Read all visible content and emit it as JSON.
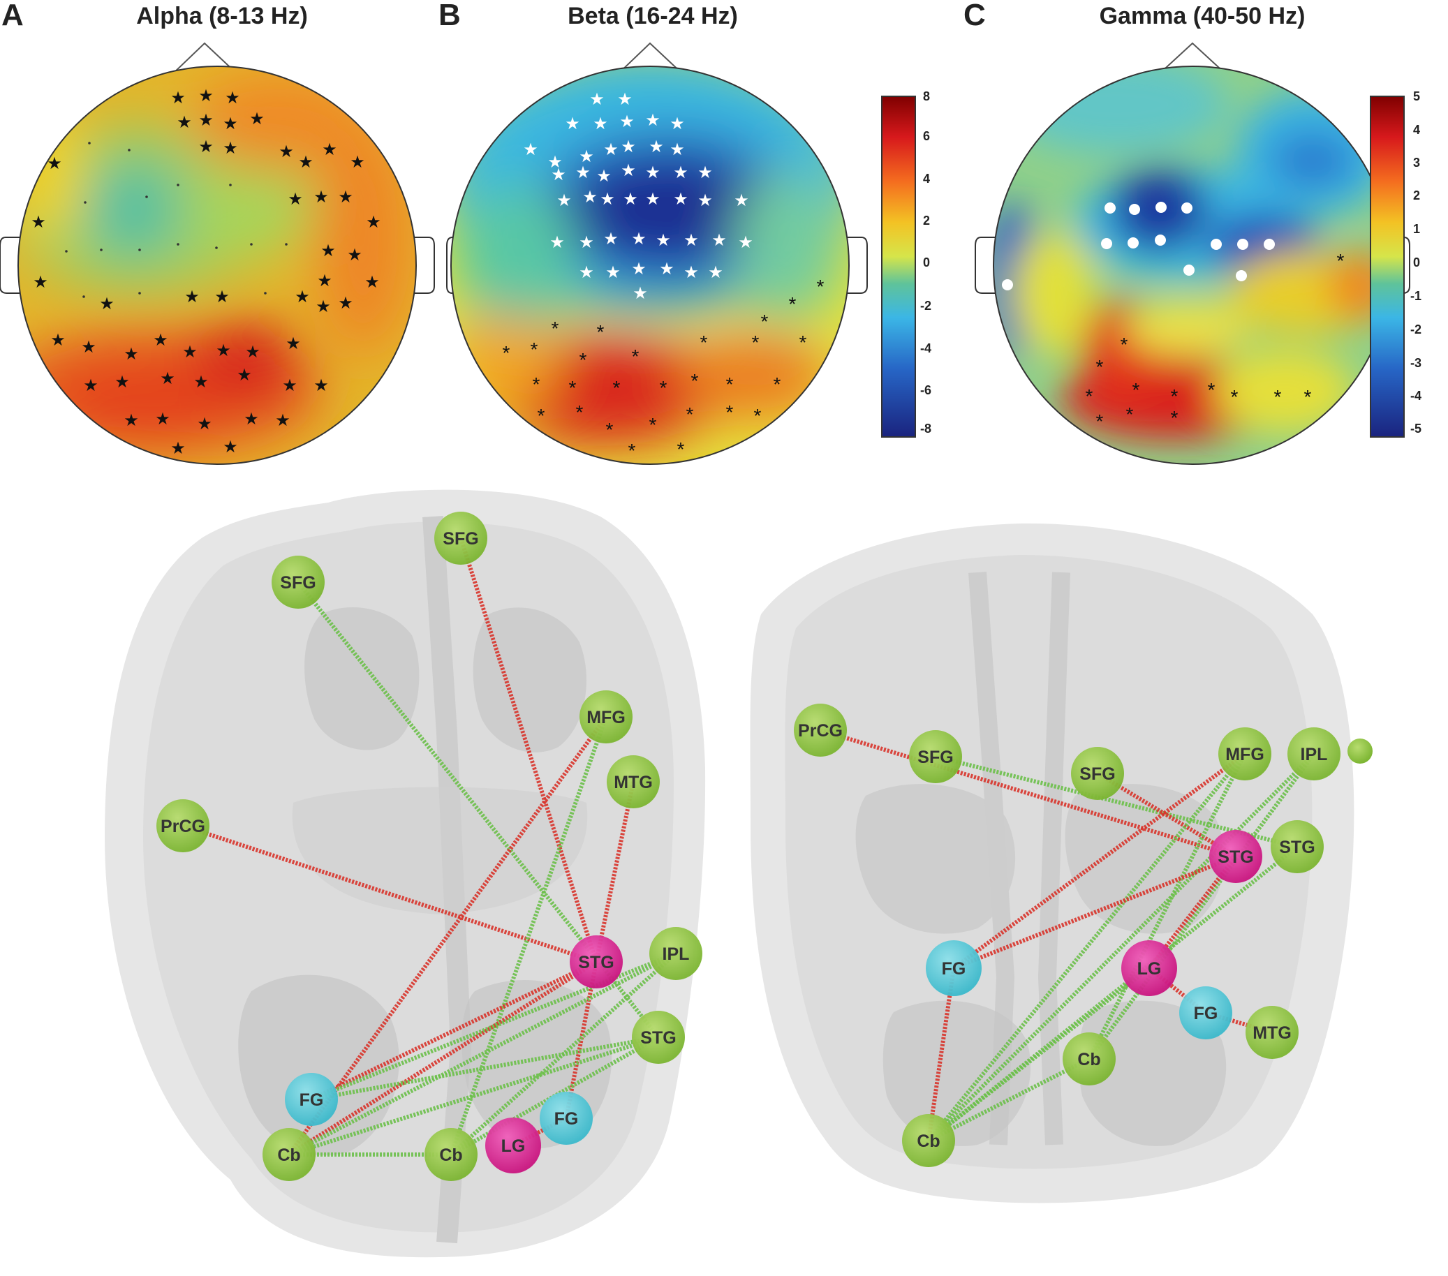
{
  "panels": [
    {
      "letter": "A",
      "title": "Alpha (8-13 Hz)"
    },
    {
      "letter": "B",
      "title": "Beta (16-24 Hz)"
    },
    {
      "letter": "C",
      "title": "Gamma (40-50 Hz)"
    }
  ],
  "colorbars": [
    {
      "ticks": [
        "8",
        "6",
        "4",
        "2",
        "0",
        "-2",
        "-4",
        "-6",
        "-8"
      ]
    },
    {
      "ticks": [
        "5",
        "4",
        "3",
        "2",
        "1",
        "0",
        "-1",
        "-2",
        "-3",
        "-4",
        "-5"
      ]
    }
  ],
  "colors": {
    "region_green": "#8dc63f",
    "region_magenta": "#e0219a",
    "region_cyan": "#4fc8d8",
    "edge_red": "#d9342b",
    "edge_green": "#6cc04a",
    "map_red": "#d7191c",
    "map_yellow": "#e6e81f",
    "map_blue": "#1f3fa8"
  },
  "networks": [
    {
      "view": "axial",
      "nodes": [
        {
          "id": "SFG_a",
          "label": "SFG",
          "type": "green"
        },
        {
          "id": "SFG_b",
          "label": "SFG",
          "type": "green"
        },
        {
          "id": "MFG",
          "label": "MFG",
          "type": "green"
        },
        {
          "id": "MTG",
          "label": "MTG",
          "type": "green"
        },
        {
          "id": "PrCG",
          "label": "PrCG",
          "type": "green"
        },
        {
          "id": "STG_m",
          "label": "STG",
          "type": "magenta"
        },
        {
          "id": "IPL",
          "label": "IPL",
          "type": "green"
        },
        {
          "id": "STG_g",
          "label": "STG",
          "type": "green"
        },
        {
          "id": "FG_l",
          "label": "FG",
          "type": "cyan"
        },
        {
          "id": "FG_r",
          "label": "FG",
          "type": "cyan"
        },
        {
          "id": "LG",
          "label": "LG",
          "type": "magenta"
        },
        {
          "id": "Cb_l",
          "label": "Cb",
          "type": "green"
        },
        {
          "id": "Cb_r",
          "label": "Cb",
          "type": "green"
        }
      ],
      "edges": [
        {
          "from": "SFG_a",
          "to": "STG_g",
          "color": "green"
        },
        {
          "from": "SFG_b",
          "to": "STG_m",
          "color": "red"
        },
        {
          "from": "PrCG",
          "to": "STG_m",
          "color": "red"
        },
        {
          "from": "MFG",
          "to": "Cb_l",
          "color": "red"
        },
        {
          "from": "MFG",
          "to": "Cb_r",
          "color": "green"
        },
        {
          "from": "MTG",
          "to": "STG_m",
          "color": "red"
        },
        {
          "from": "STG_m",
          "to": "FG_l",
          "color": "red"
        },
        {
          "from": "STG_m",
          "to": "Cb_l",
          "color": "red"
        },
        {
          "from": "STG_m",
          "to": "FG_r",
          "color": "red"
        },
        {
          "from": "IPL",
          "to": "FG_l",
          "color": "green"
        },
        {
          "from": "IPL",
          "to": "Cb_l",
          "color": "green"
        },
        {
          "from": "IPL",
          "to": "Cb_r",
          "color": "green"
        },
        {
          "from": "STG_g",
          "to": "Cb_l",
          "color": "green"
        },
        {
          "from": "STG_g",
          "to": "Cb_r",
          "color": "green"
        },
        {
          "from": "Cb_l",
          "to": "Cb_r",
          "color": "green"
        },
        {
          "from": "LG",
          "to": "FG_r",
          "color": "red"
        },
        {
          "from": "FG_l",
          "to": "STG_g",
          "color": "green"
        }
      ]
    },
    {
      "view": "coronal",
      "nodes": [
        {
          "id": "PrCG",
          "label": "PrCG",
          "type": "green"
        },
        {
          "id": "SFG_a",
          "label": "SFG",
          "type": "green"
        },
        {
          "id": "SFG_b",
          "label": "SFG",
          "type": "green"
        },
        {
          "id": "MFG",
          "label": "MFG",
          "type": "green"
        },
        {
          "id": "IPL",
          "label": "IPL",
          "type": "green"
        },
        {
          "id": "STG_m",
          "label": "STG",
          "type": "magenta"
        },
        {
          "id": "STG_g",
          "label": "STG",
          "type": "green"
        },
        {
          "id": "FG_l",
          "label": "FG",
          "type": "cyan"
        },
        {
          "id": "LG",
          "label": "LG",
          "type": "magenta"
        },
        {
          "id": "FG_r",
          "label": "FG",
          "type": "cyan"
        },
        {
          "id": "MTG",
          "label": "MTG",
          "type": "green"
        },
        {
          "id": "Cb_r",
          "label": "Cb",
          "type": "green"
        },
        {
          "id": "Cb_l",
          "label": "Cb",
          "type": "green"
        }
      ],
      "edges": [
        {
          "from": "PrCG",
          "to": "STG_m",
          "color": "red"
        },
        {
          "from": "SFG_a",
          "to": "STG_g",
          "color": "green"
        },
        {
          "from": "SFG_b",
          "to": "STG_m",
          "color": "red"
        },
        {
          "from": "MFG",
          "to": "FG_l",
          "color": "red"
        },
        {
          "from": "MFG",
          "to": "Cb_l",
          "color": "green"
        },
        {
          "from": "MFG",
          "to": "Cb_r",
          "color": "green"
        },
        {
          "from": "IPL",
          "to": "Cb_l",
          "color": "green"
        },
        {
          "from": "IPL",
          "to": "Cb_r",
          "color": "green"
        },
        {
          "from": "STG_m",
          "to": "FG_l",
          "color": "red"
        },
        {
          "from": "STG_m",
          "to": "LG",
          "color": "red"
        },
        {
          "from": "STG_g",
          "to": "Cb_l",
          "color": "green"
        },
        {
          "from": "FG_l",
          "to": "Cb_l",
          "color": "red"
        },
        {
          "from": "LG",
          "to": "FG_r",
          "color": "red"
        },
        {
          "from": "FG_r",
          "to": "MTG",
          "color": "red"
        },
        {
          "from": "LG",
          "to": "Cb_l",
          "color": "green"
        },
        {
          "from": "Cb_r",
          "to": "Cb_l",
          "color": "green"
        }
      ]
    }
  ]
}
